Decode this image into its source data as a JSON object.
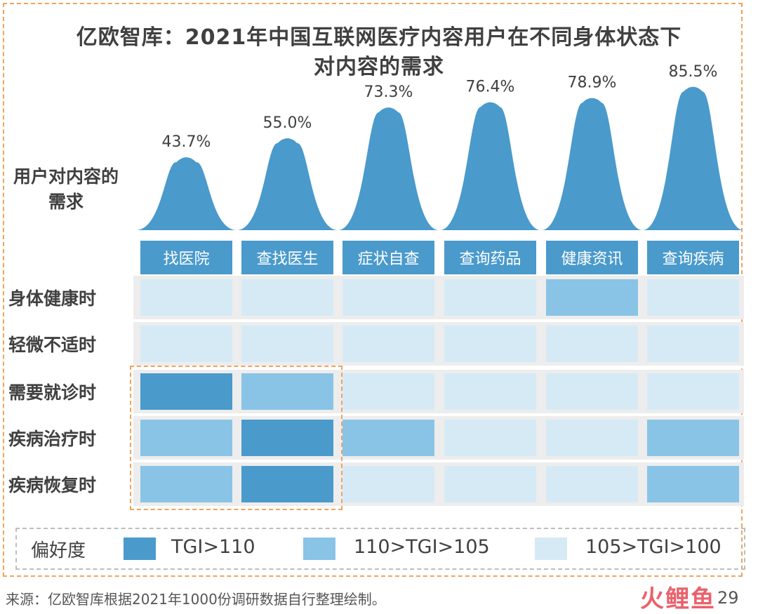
{
  "title_line1": "亿欧智库：2021年中国互联网医疗内容用户在不同身体状态下",
  "title_line2": "对内容的需求",
  "demand_label": "用户对内容的需求",
  "columns": [
    "找医院",
    "查找医生",
    "症状自查",
    "查询药品",
    "健康资讯",
    "查询疾病"
  ],
  "rows": [
    "身体健康时",
    "轻微不适时",
    "需要就诊时",
    "疾病治疗时",
    "疾病恢复时"
  ],
  "legend": {
    "title": "偏好度",
    "items": [
      "TGI>110",
      "110>TGI>105",
      "105>TGI>100"
    ]
  },
  "colors": {
    "high": "#4a9acc",
    "mid": "#89c4e6",
    "low": "#d6eaf6",
    "peak": "#4a9acc",
    "band": "#ededed"
  },
  "source": "来源：亿欧智库根据2021年1000份调研数据自行整理绘制。",
  "page_number": "29",
  "watermark": "火鲤鱼",
  "chart_data": [
    {
      "type": "area",
      "title": "用户对内容的需求",
      "categories": [
        "找医院",
        "查找医生",
        "症状自查",
        "查询药品",
        "健康资讯",
        "查询疾病"
      ],
      "values": [
        43.7,
        55.0,
        73.3,
        76.4,
        78.9,
        85.5
      ],
      "value_labels": [
        "43.7%",
        "55.0%",
        "73.3%",
        "76.4%",
        "78.9%",
        "85.5%"
      ],
      "unit": "%"
    },
    {
      "type": "heatmap",
      "xcategories": [
        "找医院",
        "查找医生",
        "症状自查",
        "查询药品",
        "健康资讯",
        "查询疾病"
      ],
      "ycategories": [
        "身体健康时",
        "轻微不适时",
        "需要就诊时",
        "疾病治疗时",
        "疾病恢复时"
      ],
      "levels": [
        "TGI>110",
        "110>TGI>105",
        "105>TGI>100"
      ],
      "matrix": [
        [
          2,
          2,
          2,
          2,
          1,
          2
        ],
        [
          2,
          2,
          2,
          2,
          2,
          2
        ],
        [
          0,
          1,
          2,
          2,
          2,
          2
        ],
        [
          1,
          0,
          1,
          2,
          2,
          1
        ],
        [
          1,
          0,
          2,
          2,
          2,
          1
        ]
      ]
    }
  ]
}
